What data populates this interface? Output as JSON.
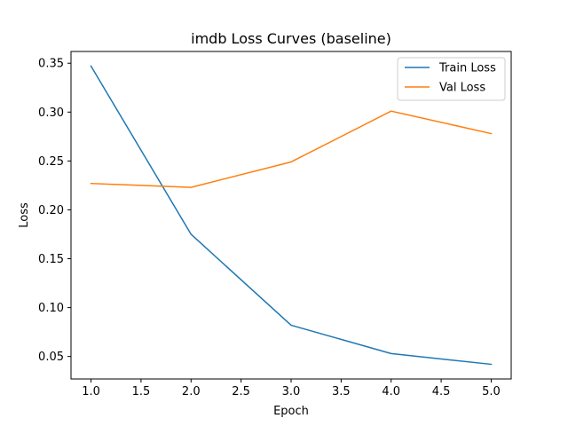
{
  "chart_data": {
    "type": "line",
    "title": "imdb Loss Curves (baseline)",
    "xlabel": "Epoch",
    "ylabel": "Loss",
    "x": [
      1.0,
      2.0,
      3.0,
      4.0,
      5.0
    ],
    "xlim": [
      0.8,
      5.2
    ],
    "ylim": [
      0.027,
      0.362
    ],
    "xticks": [
      1.0,
      1.5,
      2.0,
      2.5,
      3.0,
      3.5,
      4.0,
      4.5,
      5.0
    ],
    "xtick_labels": [
      "1.0",
      "1.5",
      "2.0",
      "2.5",
      "3.0",
      "3.5",
      "4.0",
      "4.5",
      "5.0"
    ],
    "yticks": [
      0.05,
      0.1,
      0.15,
      0.2,
      0.25,
      0.3,
      0.35
    ],
    "ytick_labels": [
      "0.05",
      "0.10",
      "0.15",
      "0.20",
      "0.25",
      "0.30",
      "0.35"
    ],
    "grid": false,
    "legend_position": "top-right",
    "series": [
      {
        "name": "Train Loss",
        "color": "#1f77b4",
        "values": [
          0.347,
          0.175,
          0.082,
          0.053,
          0.042
        ]
      },
      {
        "name": "Val Loss",
        "color": "#ff7f0e",
        "values": [
          0.227,
          0.223,
          0.249,
          0.301,
          0.278
        ]
      }
    ]
  }
}
